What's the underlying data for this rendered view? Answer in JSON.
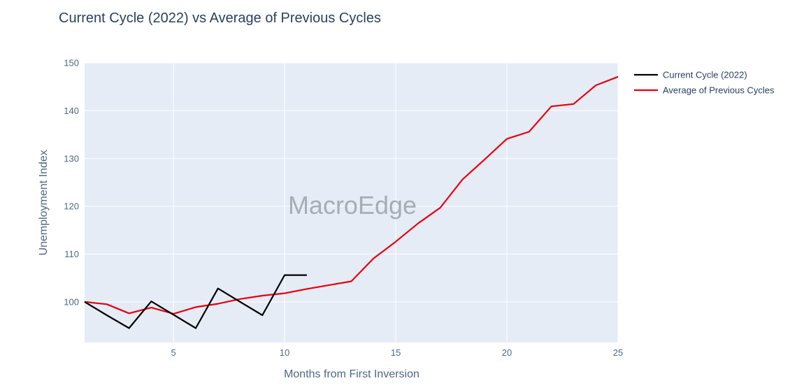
{
  "chart_data": {
    "type": "line",
    "title": "Current Cycle (2022) vs Average of Previous Cycles",
    "xlabel": "Months from First Inversion",
    "ylabel": "Unemployment Index",
    "watermark": "MacroEdge",
    "xlim": [
      1,
      25
    ],
    "ylim": [
      91.5,
      150
    ],
    "xticks": [
      5,
      10,
      15,
      20,
      25
    ],
    "yticks": [
      100,
      110,
      120,
      130,
      140,
      150
    ],
    "grid": true,
    "legend_position": "top-right",
    "colors": {
      "plot_bg": "#e5ecf6"
    },
    "series": [
      {
        "name": "Current Cycle (2022)",
        "color": "#000000",
        "x": [
          1,
          2,
          3,
          4,
          5,
          6,
          7,
          8,
          9,
          10,
          11
        ],
        "y": [
          100,
          97.2,
          94.5,
          100.1,
          97.3,
          94.5,
          102.8,
          100,
          97.2,
          105.6,
          105.6
        ]
      },
      {
        "name": "Average of Previous Cycles",
        "color": "#e8000b",
        "x": [
          1,
          2,
          3,
          4,
          5,
          6,
          7,
          8,
          9,
          10,
          11,
          12,
          13,
          14,
          15,
          16,
          17,
          18,
          19,
          20,
          21,
          22,
          23,
          24,
          25
        ],
        "y": [
          100,
          99.5,
          97.6,
          98.8,
          97.5,
          98.9,
          99.6,
          100.6,
          101.3,
          101.8,
          102.7,
          103.5,
          104.3,
          109.1,
          112.6,
          116.4,
          119.7,
          125.6,
          129.8,
          134.1,
          135.6,
          140.9,
          141.4,
          145.3,
          147.1
        ]
      }
    ]
  }
}
